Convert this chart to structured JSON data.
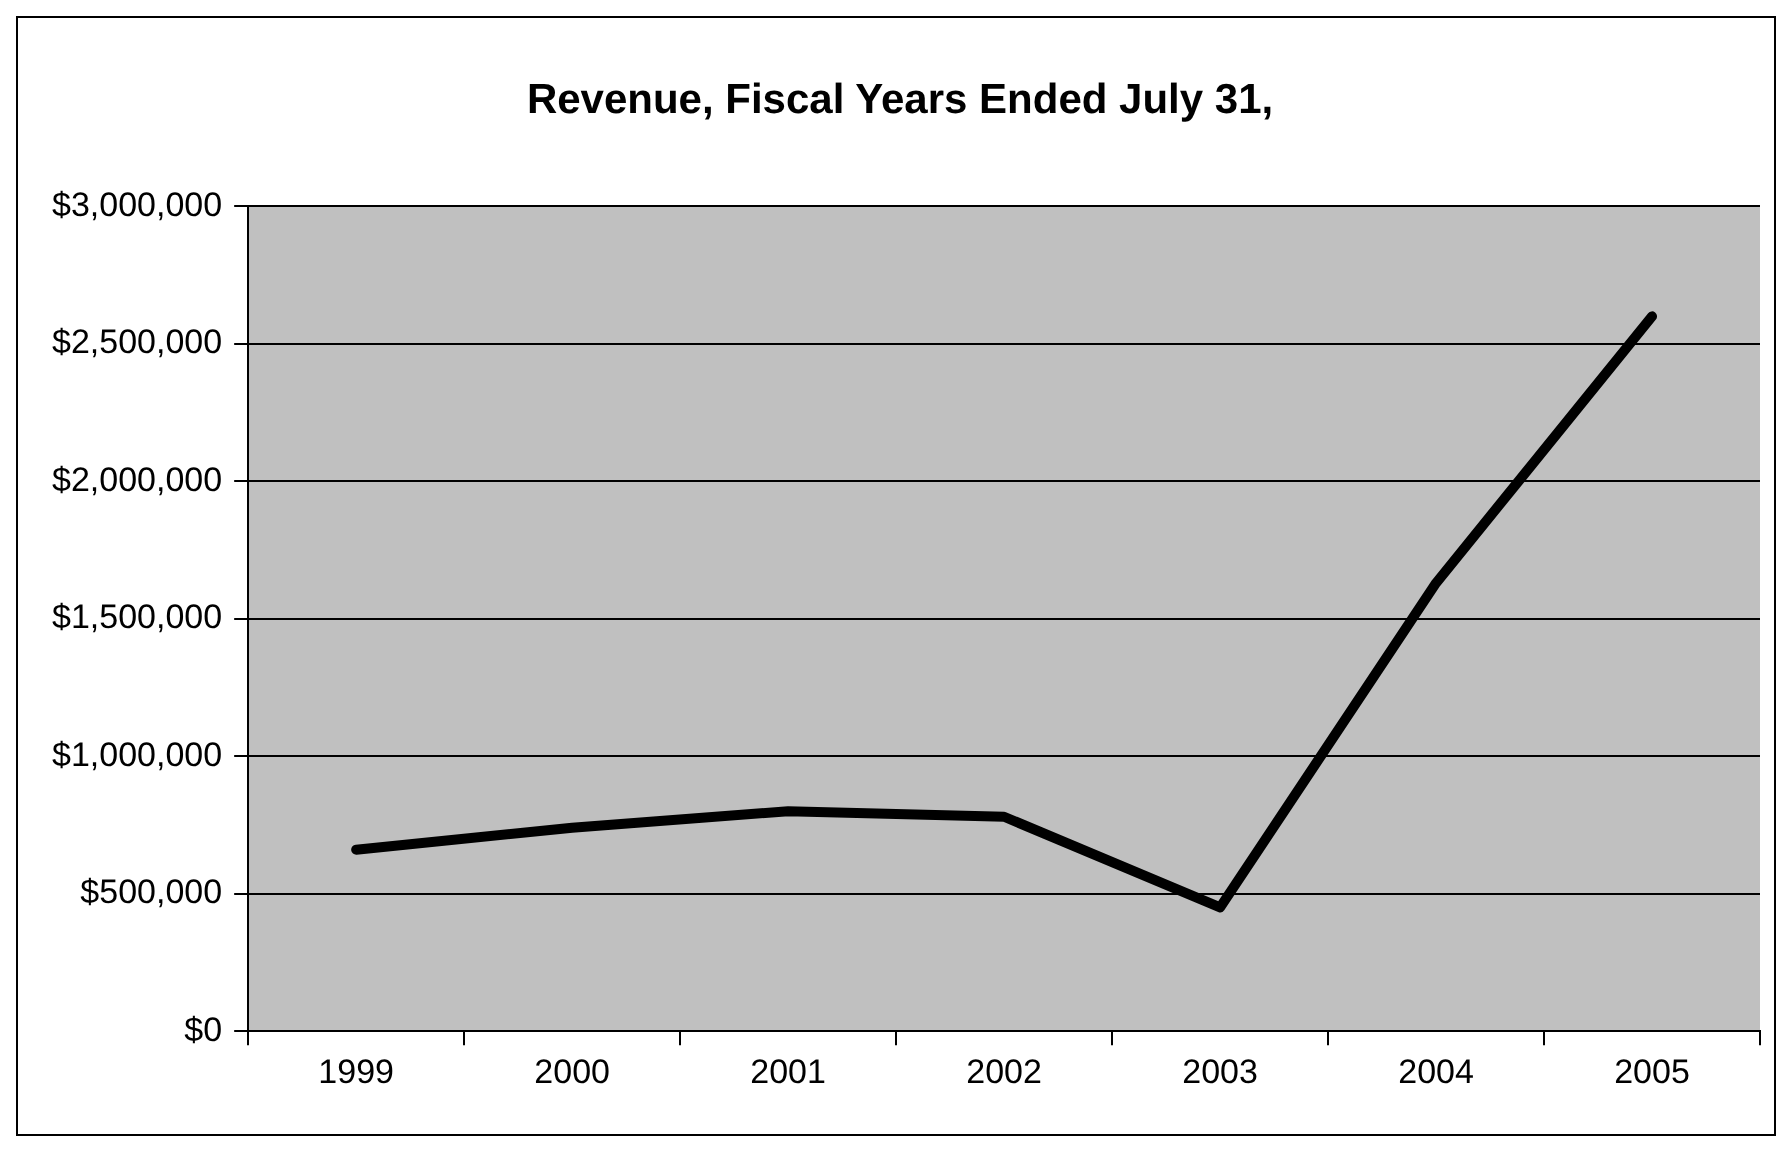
{
  "chart_data": {
    "type": "line",
    "title": "Revenue, Fiscal Years Ended July 31,",
    "categories": [
      "1999",
      "2000",
      "2001",
      "2002",
      "2003",
      "2004",
      "2005"
    ],
    "series": [
      {
        "color": "#000000",
        "values": [
          660000,
          740000,
          800000,
          780000,
          450000,
          1630000,
          2600000
        ]
      }
    ],
    "ylim": [
      0,
      3000000
    ],
    "yticks": [
      {
        "value": 0,
        "label": "$0"
      },
      {
        "value": 500000,
        "label": "$500,000"
      },
      {
        "value": 1000000,
        "label": "$1,000,000"
      },
      {
        "value": 1500000,
        "label": "$1,500,000"
      },
      {
        "value": 2000000,
        "label": "$2,000,000"
      },
      {
        "value": 2500000,
        "label": "$2,500,000"
      },
      {
        "value": 3000000,
        "label": "$3,000,000"
      }
    ],
    "grid": "y",
    "legend": false,
    "marker": "none",
    "line_style": "solid"
  }
}
